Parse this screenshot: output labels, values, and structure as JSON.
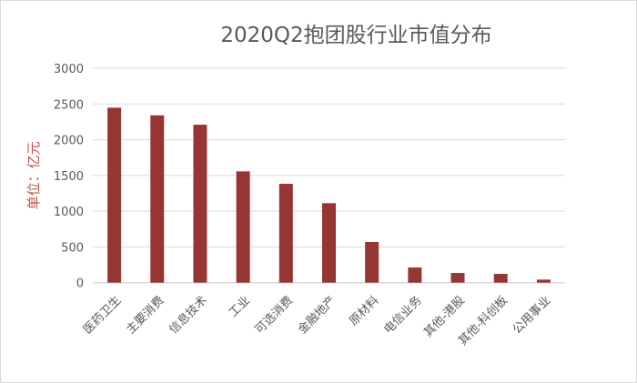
{
  "chart_data": {
    "type": "bar",
    "title": "2020Q2抱团股行业市值分布",
    "ylabel": "单位：亿元",
    "xlabel": "",
    "ylim": [
      0,
      3000
    ],
    "yticks": [
      0,
      500,
      1000,
      1500,
      2000,
      2500,
      3000
    ],
    "grid": true,
    "bar_color": "#963634",
    "categories": [
      "医药卫生",
      "主要消费",
      "信息技术",
      "工业",
      "可选消费",
      "金融地产",
      "原材料",
      "电信业务",
      "其他-港股",
      "其他-科创板",
      "公用事业"
    ],
    "values": [
      2448,
      2341,
      2210,
      1557,
      1383,
      1112,
      569,
      212,
      136,
      123,
      43
    ]
  }
}
